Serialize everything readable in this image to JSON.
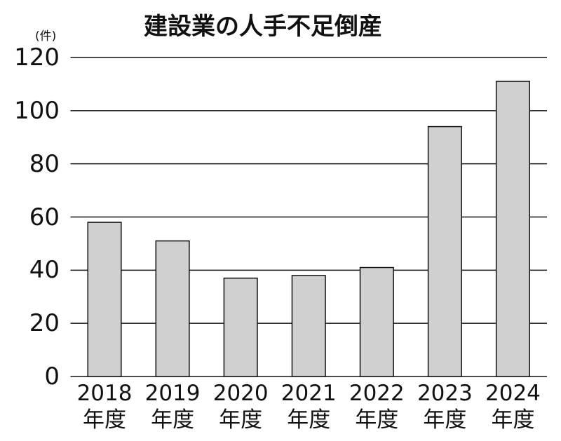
{
  "chart_data": {
    "type": "bar",
    "title": "建設業の人手不足倒産",
    "y_label": "(件)",
    "categories": [
      "2018\n年度",
      "2019\n年度",
      "2020\n年度",
      "2021\n年度",
      "2022\n年度",
      "2023\n年度",
      "2024\n年度"
    ],
    "values": [
      58,
      51,
      37,
      38,
      41,
      94,
      111
    ],
    "color": "#d0d0d0",
    "ylim": [
      0,
      120
    ],
    "yticks": [
      0,
      20,
      40,
      60,
      80,
      100,
      120
    ],
    "grid": true
  }
}
